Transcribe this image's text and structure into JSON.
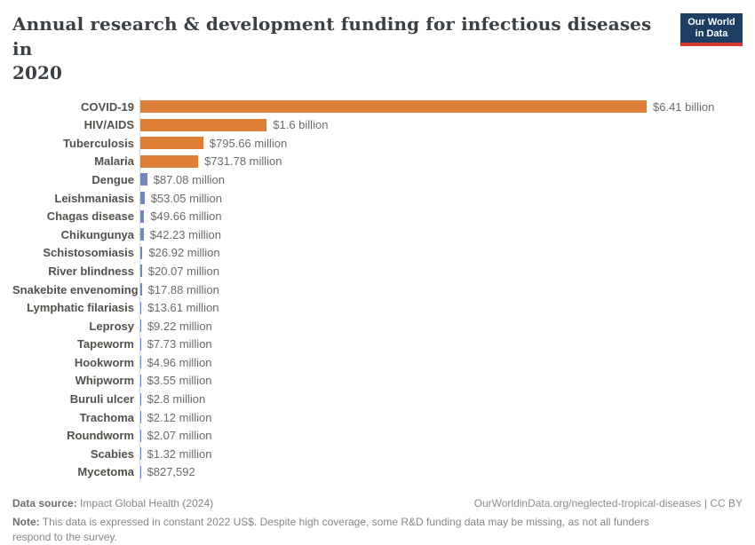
{
  "header": {
    "title": "Annual research & development funding for infectious diseases in\n2020",
    "logo_text": "Our World\nin Data"
  },
  "chart_data": {
    "type": "bar",
    "orientation": "horizontal",
    "title": "Annual research & development funding for infectious diseases in 2020",
    "unit": "constant 2022 US$",
    "xlim_million_usd": [
      0,
      6410
    ],
    "grid": false,
    "legend": false,
    "categories": [
      "COVID-19",
      "HIV/AIDS",
      "Tuberculosis",
      "Malaria",
      "Dengue",
      "Leishmaniasis",
      "Chagas disease",
      "Chikungunya",
      "Schistosomiasis",
      "River blindness",
      "Snakebite envenoming",
      "Lymphatic filariasis",
      "Leprosy",
      "Tapeworm",
      "Hookworm",
      "Whipworm",
      "Buruli ulcer",
      "Trachoma",
      "Roundworm",
      "Scabies",
      "Mycetoma"
    ],
    "values_million_usd": [
      6410,
      1600,
      795.66,
      731.78,
      87.08,
      53.05,
      49.66,
      42.23,
      26.92,
      20.07,
      17.88,
      13.61,
      9.22,
      7.73,
      4.96,
      3.55,
      2.8,
      2.12,
      2.07,
      1.32,
      0.827592
    ],
    "value_labels": [
      "$6.41 billion",
      "$1.6 billion",
      "$795.66 million",
      "$731.78 million",
      "$87.08 million",
      "$53.05 million",
      "$49.66 million",
      "$42.23 million",
      "$26.92 million",
      "$20.07 million",
      "$17.88 million",
      "$13.61 million",
      "$9.22 million",
      "$7.73 million",
      "$4.96 million",
      "$3.55 million",
      "$2.8 million",
      "$2.12 million",
      "$2.07 million",
      "$1.32 million",
      "$827,592"
    ],
    "major_count": 4,
    "bar_colors": {
      "major": "#df7e37",
      "neglected": "#7189bd"
    },
    "axis_color": "#d9d9d9"
  },
  "footer": {
    "datasource_label": "Data source:",
    "datasource_value": " Impact Global Health (2024)",
    "link": "OurWorldinData.org/neglected-tropical-diseases | CC BY",
    "note_label": "Note:",
    "note_value": " This data is expressed in constant 2022 US$. Despite high coverage, some R&D funding data may be missing, as not all funders respond to the survey."
  }
}
